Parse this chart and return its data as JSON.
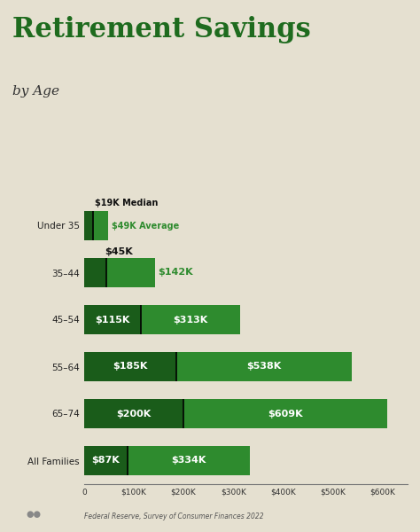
{
  "title_line1": "Retirement Savings",
  "title_line2": "by Age",
  "bg_color": "#e5e0d0",
  "bar_color_light": "#2e8b2e",
  "bar_color_dark": "#1a5c1a",
  "text_white": "#ffffff",
  "text_black": "#111111",
  "text_green": "#1e6b1e",
  "categories": [
    "Under 35",
    "35–44",
    "45–54",
    "55–64",
    "65–74",
    "All Families"
  ],
  "median_values": [
    19000,
    45000,
    115000,
    185000,
    200000,
    87000
  ],
  "average_values": [
    49000,
    142000,
    313000,
    538000,
    609000,
    334000
  ],
  "median_labels": [
    "$19K",
    "$45K",
    "$115K",
    "$185K",
    "$200K",
    "$87K"
  ],
  "average_labels": [
    "$49K",
    "$142K",
    "$313K",
    "$538K",
    "$609K",
    "$334K"
  ],
  "xlim": [
    0,
    650000
  ],
  "xlabel_ticks": [
    0,
    100000,
    200000,
    300000,
    400000,
    500000,
    600000
  ],
  "xlabel_labels": [
    "0",
    "$100K",
    "$200K",
    "$300K",
    "$400K",
    "$500K",
    "$600K"
  ],
  "footnote": "Federal Reserve, Survey of Consumer Finances 2022",
  "title_fontsize": 22,
  "subtitle_fontsize": 11,
  "label_fontsize_large": 8,
  "label_fontsize_small": 7,
  "ytick_fontsize": 7.5,
  "xtick_fontsize": 6.5
}
